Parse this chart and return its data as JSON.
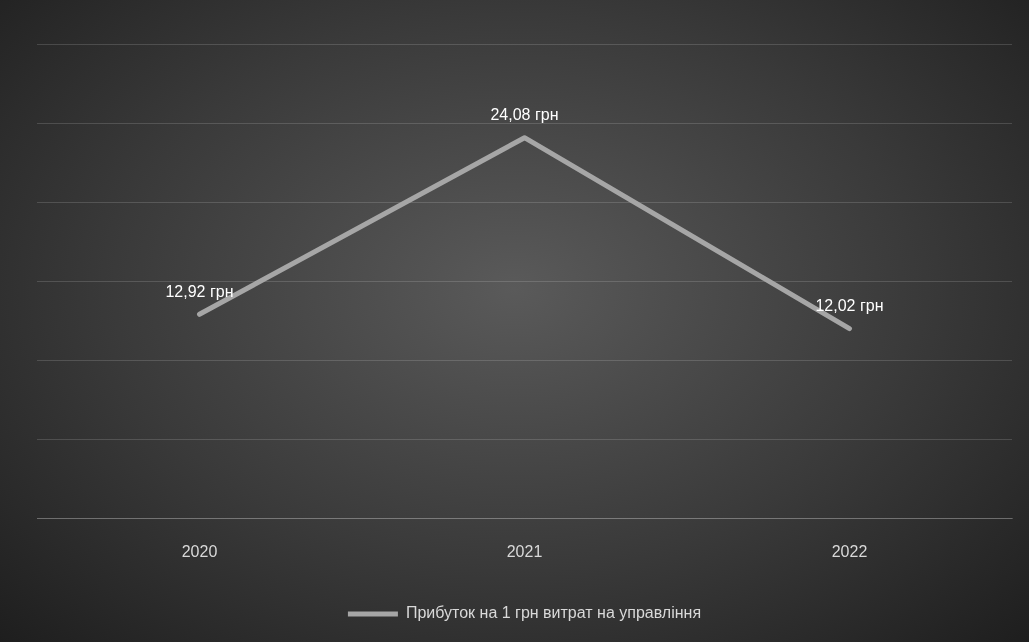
{
  "chart_data": {
    "type": "line",
    "categories": [
      "2020",
      "2021",
      "2022"
    ],
    "series": [
      {
        "name": "Прибуток на 1 грн витрат на управління",
        "color": "#a6a6a6",
        "values": [
          12.92,
          24.08,
          12.02
        ],
        "value_labels": [
          "12,92 грн",
          "24,08 грн",
          "12,02 грн"
        ]
      }
    ],
    "ylim": [
      0,
      30
    ],
    "yticks": [
      {
        "value": 0,
        "label": null
      },
      {
        "value": 5,
        "label": null
      },
      {
        "value": 10,
        "label": null
      },
      {
        "value": 15,
        "label": null
      },
      {
        "value": 20,
        "label": null
      },
      {
        "value": 25,
        "label": null
      },
      {
        "value": 30,
        "label": null
      }
    ],
    "grid": "y",
    "legend": "bottom",
    "tick_labels": "x",
    "marker": "none"
  }
}
